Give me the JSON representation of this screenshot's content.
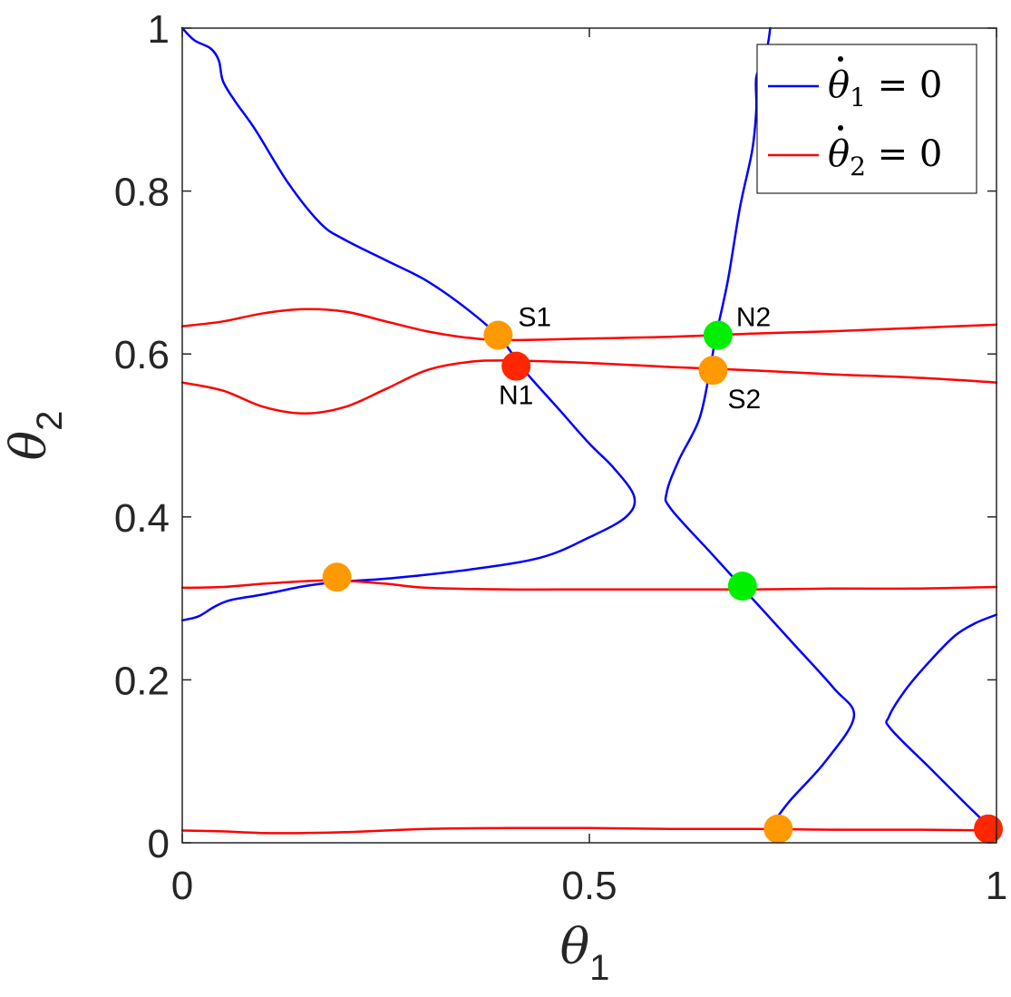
{
  "chart_data": {
    "type": "line",
    "xlabel": "θ",
    "xlabel_sub": "1",
    "ylabel": "θ",
    "ylabel_sub": "2",
    "xlim": [
      0,
      1
    ],
    "ylim": [
      0,
      1
    ],
    "x_ticks": [
      {
        "value": 0,
        "label": "0"
      },
      {
        "value": 0.5,
        "label": "0.5"
      },
      {
        "value": 1,
        "label": "1"
      }
    ],
    "y_ticks": [
      {
        "value": 0,
        "label": "0"
      },
      {
        "value": 0.2,
        "label": "0.2"
      },
      {
        "value": 0.4,
        "label": "0.4"
      },
      {
        "value": 0.6,
        "label": "0.6"
      },
      {
        "value": 0.8,
        "label": "0.8"
      },
      {
        "value": 1,
        "label": "1"
      }
    ],
    "grid": false,
    "legend_position": "top-right",
    "legend": [
      {
        "symbol": "θ",
        "sub": "1",
        "eq": " = 0",
        "color": "#0000ff"
      },
      {
        "symbol": "θ",
        "sub": "2",
        "eq": " = 0",
        "color": "#ff0000"
      }
    ],
    "series": [
      {
        "color": "#0000ff",
        "points": [
          [
            0.0,
            1.0
          ],
          [
            0.015,
            0.985
          ],
          [
            0.035,
            0.975
          ],
          [
            0.045,
            0.96
          ],
          [
            0.05,
            0.935
          ],
          [
            0.065,
            0.91
          ],
          [
            0.09,
            0.875
          ],
          [
            0.13,
            0.81
          ],
          [
            0.17,
            0.76
          ],
          [
            0.2,
            0.74
          ],
          [
            0.25,
            0.715
          ],
          [
            0.3,
            0.69
          ],
          [
            0.35,
            0.655
          ],
          [
            0.39,
            0.62
          ],
          [
            0.42,
            0.58
          ],
          [
            0.46,
            0.535
          ],
          [
            0.5,
            0.49
          ],
          [
            0.53,
            0.46
          ],
          [
            0.555,
            0.425
          ],
          [
            0.545,
            0.4
          ],
          [
            0.5,
            0.375
          ],
          [
            0.44,
            0.35
          ],
          [
            0.35,
            0.335
          ],
          [
            0.26,
            0.325
          ],
          [
            0.19,
            0.32
          ],
          [
            0.15,
            0.315
          ],
          [
            0.1,
            0.305
          ],
          [
            0.06,
            0.298
          ],
          [
            0.04,
            0.29
          ],
          [
            0.02,
            0.278
          ],
          [
            0.0,
            0.273
          ]
        ]
      },
      {
        "color": "#0000ff",
        "points": [
          [
            0.72,
            0.016
          ],
          [
            0.745,
            0.05
          ],
          [
            0.79,
            0.1
          ],
          [
            0.825,
            0.155
          ],
          [
            0.8,
            0.19
          ],
          [
            0.75,
            0.245
          ],
          [
            0.7,
            0.3
          ],
          [
            0.65,
            0.355
          ],
          [
            0.6,
            0.41
          ],
          [
            0.595,
            0.43
          ],
          [
            0.61,
            0.47
          ],
          [
            0.635,
            0.52
          ],
          [
            0.648,
            0.58
          ],
          [
            0.655,
            0.62
          ],
          [
            0.67,
            0.69
          ],
          [
            0.685,
            0.78
          ],
          [
            0.7,
            0.85
          ],
          [
            0.705,
            0.9
          ],
          [
            0.705,
            0.94
          ],
          [
            0.715,
            0.96
          ],
          [
            0.72,
            0.985
          ],
          [
            0.722,
            1.0
          ]
        ]
      },
      {
        "color": "#0000ff",
        "points": [
          [
            0.995,
            0.016
          ],
          [
            0.96,
            0.05
          ],
          [
            0.92,
            0.09
          ],
          [
            0.87,
            0.14
          ],
          [
            0.868,
            0.155
          ],
          [
            0.89,
            0.19
          ],
          [
            0.92,
            0.225
          ],
          [
            0.95,
            0.255
          ],
          [
            0.975,
            0.27
          ],
          [
            1.0,
            0.28
          ]
        ]
      },
      {
        "color": "#ff0000",
        "points": [
          [
            0.0,
            0.634
          ],
          [
            0.05,
            0.64
          ],
          [
            0.1,
            0.65
          ],
          [
            0.15,
            0.655
          ],
          [
            0.2,
            0.652
          ],
          [
            0.25,
            0.64
          ],
          [
            0.3,
            0.628
          ],
          [
            0.35,
            0.62
          ],
          [
            0.4,
            0.617
          ],
          [
            0.5,
            0.619
          ],
          [
            0.6,
            0.621
          ],
          [
            0.7,
            0.625
          ],
          [
            0.8,
            0.628
          ],
          [
            0.9,
            0.632
          ],
          [
            1.0,
            0.636
          ]
        ]
      },
      {
        "color": "#ff0000",
        "points": [
          [
            0.0,
            0.565
          ],
          [
            0.05,
            0.555
          ],
          [
            0.1,
            0.535
          ],
          [
            0.15,
            0.527
          ],
          [
            0.2,
            0.535
          ],
          [
            0.25,
            0.557
          ],
          [
            0.3,
            0.58
          ],
          [
            0.35,
            0.59
          ],
          [
            0.4,
            0.592
          ],
          [
            0.5,
            0.589
          ],
          [
            0.6,
            0.584
          ],
          [
            0.7,
            0.58
          ],
          [
            0.8,
            0.575
          ],
          [
            0.9,
            0.571
          ],
          [
            1.0,
            0.565
          ]
        ]
      },
      {
        "color": "#ff0000",
        "points": [
          [
            0.0,
            0.313
          ],
          [
            0.05,
            0.314
          ],
          [
            0.1,
            0.318
          ],
          [
            0.15,
            0.321
          ],
          [
            0.19,
            0.322
          ],
          [
            0.25,
            0.318
          ],
          [
            0.3,
            0.313
          ],
          [
            0.4,
            0.311
          ],
          [
            0.5,
            0.311
          ],
          [
            0.6,
            0.311
          ],
          [
            0.7,
            0.311
          ],
          [
            0.8,
            0.312
          ],
          [
            0.9,
            0.312
          ],
          [
            1.0,
            0.314
          ]
        ]
      },
      {
        "color": "#ff0000",
        "points": [
          [
            0.0,
            0.015
          ],
          [
            0.05,
            0.014
          ],
          [
            0.1,
            0.012
          ],
          [
            0.15,
            0.012
          ],
          [
            0.2,
            0.013
          ],
          [
            0.3,
            0.017
          ],
          [
            0.4,
            0.018
          ],
          [
            0.5,
            0.018
          ],
          [
            0.6,
            0.017
          ],
          [
            0.7,
            0.017
          ],
          [
            0.8,
            0.016
          ],
          [
            0.9,
            0.016
          ],
          [
            1.0,
            0.015
          ]
        ]
      }
    ],
    "markers": [
      {
        "x": 0.388,
        "y": 0.623,
        "color": "#ff9900",
        "label": "S1",
        "label_pos": "above-right"
      },
      {
        "x": 0.41,
        "y": 0.585,
        "color": "#ff2600",
        "label": "N1",
        "label_pos": "below"
      },
      {
        "x": 0.658,
        "y": 0.623,
        "color": "#00ee00",
        "label": "N2",
        "label_pos": "right"
      },
      {
        "x": 0.652,
        "y": 0.58,
        "color": "#ff9900",
        "label": "S2",
        "label_pos": "below-right"
      },
      {
        "x": 0.19,
        "y": 0.326,
        "color": "#ff9900",
        "label": "",
        "label_pos": ""
      },
      {
        "x": 0.688,
        "y": 0.315,
        "color": "#00ee00",
        "label": "",
        "label_pos": ""
      },
      {
        "x": 0.732,
        "y": 0.017,
        "color": "#ff9900",
        "label": "",
        "label_pos": ""
      },
      {
        "x": 0.99,
        "y": 0.017,
        "color": "#ff2600",
        "label": "",
        "label_pos": ""
      }
    ]
  }
}
